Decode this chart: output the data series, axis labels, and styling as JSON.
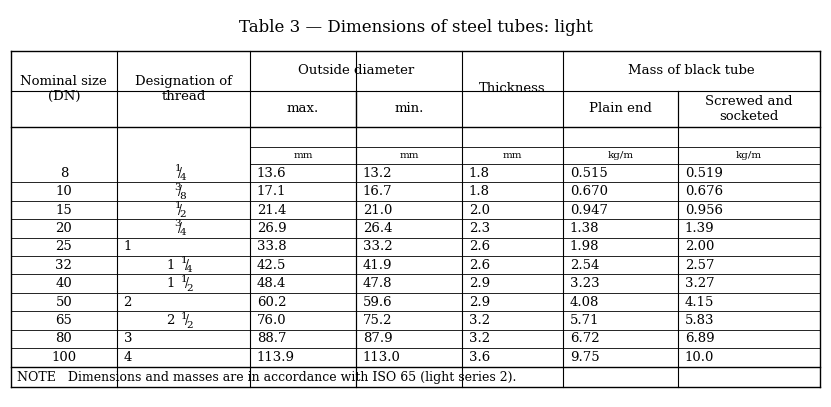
{
  "title": "Table 3 — Dimensions of steel tubes: light",
  "note": "NOTE   Dimensions and masses are in accordance with ISO 65 (light series 2).",
  "rows": [
    [
      "8",
      "1/4",
      "13.6",
      "13.2",
      "1.8",
      "0.515",
      "0.519"
    ],
    [
      "10",
      "3/8",
      "17.1",
      "16.7",
      "1.8",
      "0.670",
      "0.676"
    ],
    [
      "15",
      "1/2",
      "21.4",
      "21.0",
      "2.0",
      "0.947",
      "0.956"
    ],
    [
      "20",
      "3/4",
      "26.9",
      "26.4",
      "2.3",
      "1.38",
      "1.39"
    ],
    [
      "25",
      "1",
      "33.8",
      "33.2",
      "2.6",
      "1.98",
      "2.00"
    ],
    [
      "32",
      "1 1/4",
      "42.5",
      "41.9",
      "2.6",
      "2.54",
      "2.57"
    ],
    [
      "40",
      "1 1/2",
      "48.4",
      "47.8",
      "2.9",
      "3.23",
      "3.27"
    ],
    [
      "50",
      "2",
      "60.2",
      "59.6",
      "2.9",
      "4.08",
      "4.15"
    ],
    [
      "65",
      "2 1/2",
      "76.0",
      "75.2",
      "3.2",
      "5.71",
      "5.83"
    ],
    [
      "80",
      "3",
      "88.7",
      "87.9",
      "3.2",
      "6.72",
      "6.89"
    ],
    [
      "100",
      "4",
      "113.9",
      "113.0",
      "3.6",
      "9.75",
      "10.0"
    ]
  ],
  "bg_color": "#ffffff",
  "text_color": "#000000",
  "border_color": "#000000",
  "font_size": 9.5,
  "title_font_size": 12
}
